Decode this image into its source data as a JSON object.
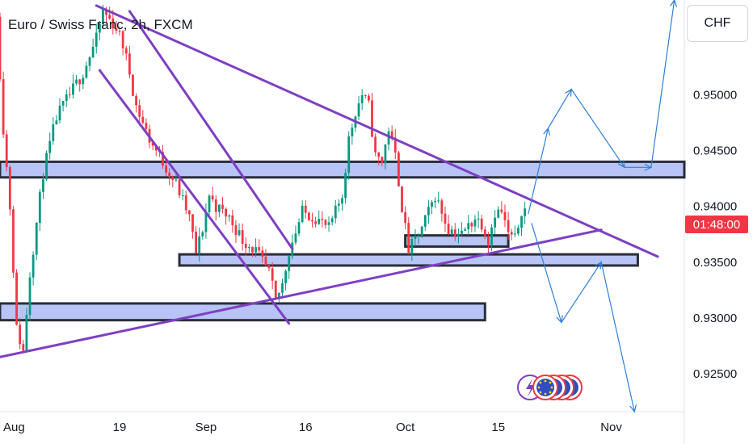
{
  "header": {
    "title": "Euro / Swiss Franc, 2h, FXCM"
  },
  "price_scale": {
    "currency_label": "CHF",
    "countdown": "01:48:00",
    "countdown_color": "#f23645"
  },
  "colors": {
    "up": "#089981",
    "down": "#f23645",
    "trendline": "#7e3fc4",
    "zone_fill": "#b7c4f5",
    "zone_stroke": "#2a2e39",
    "projection": "#2f7fd8"
  },
  "icons": [
    "flash-icon",
    "eur-flag-icon"
  ],
  "chart_data": {
    "type": "candlestick",
    "title": "Euro / Swiss Franc, 2h, FXCM",
    "ylim": [
      0.9216,
      0.9585
    ],
    "y_ticks": [
      "0.92500",
      "0.93000",
      "0.93500",
      "0.94000",
      "0.94500",
      "0.95000"
    ],
    "x_ticks": [
      "Aug",
      "19",
      "Sep",
      "16",
      "Oct",
      "15",
      "Nov"
    ],
    "x_tick_days": [
      0,
      18,
      31,
      46,
      61,
      75,
      92
    ],
    "x_range_days": [
      0,
      103
    ],
    "last_price_day": 79,
    "path": [
      [
        0,
        0.957
      ],
      [
        1,
        0.947
      ],
      [
        2,
        0.94
      ],
      [
        3,
        0.929
      ],
      [
        4,
        0.927
      ],
      [
        5,
        0.934
      ],
      [
        7,
        0.943
      ],
      [
        9,
        0.948
      ],
      [
        11,
        0.95
      ],
      [
        13,
        0.952
      ],
      [
        15,
        0.955
      ],
      [
        16,
        0.9575
      ],
      [
        18,
        0.956
      ],
      [
        19,
        0.9545
      ],
      [
        20,
        0.952
      ],
      [
        21,
        0.949
      ],
      [
        23,
        0.946
      ],
      [
        25,
        0.944
      ],
      [
        27,
        0.942
      ],
      [
        29,
        0.939
      ],
      [
        30,
        0.9358
      ],
      [
        31,
        0.938
      ],
      [
        32,
        0.941
      ],
      [
        33,
        0.94
      ],
      [
        35,
        0.939
      ],
      [
        37,
        0.937
      ],
      [
        39,
        0.936
      ],
      [
        40,
        0.935
      ],
      [
        41,
        0.934
      ],
      [
        42,
        0.9315
      ],
      [
        43,
        0.933
      ],
      [
        44,
        0.936
      ],
      [
        46,
        0.9395
      ],
      [
        48,
        0.939
      ],
      [
        50,
        0.938
      ],
      [
        52,
        0.941
      ],
      [
        53,
        0.946
      ],
      [
        54,
        0.9485
      ],
      [
        55,
        0.95
      ],
      [
        56,
        0.949
      ],
      [
        57,
        0.9445
      ],
      [
        58,
        0.944
      ],
      [
        59,
        0.947
      ],
      [
        60,
        0.9445
      ],
      [
        61,
        0.94
      ],
      [
        62,
        0.936
      ],
      [
        64,
        0.938
      ],
      [
        66,
        0.941
      ],
      [
        68,
        0.938
      ],
      [
        70,
        0.9375
      ],
      [
        72,
        0.939
      ],
      [
        73,
        0.9385
      ],
      [
        74,
        0.937
      ],
      [
        75,
        0.9395
      ],
      [
        76,
        0.9395
      ],
      [
        77,
        0.9375
      ],
      [
        78,
        0.937
      ],
      [
        79,
        0.9397
      ]
    ],
    "zones": [
      {
        "name": "zone-0.9430",
        "x": [
          0,
          103
        ],
        "y": [
          0.9426,
          0.944
        ]
      },
      {
        "name": "zone-0.9370",
        "x": [
          61,
          76.5
        ],
        "y": [
          0.9364,
          0.9374
        ]
      },
      {
        "name": "zone-0.9350",
        "x": [
          27,
          96
        ],
        "y": [
          0.9347,
          0.9357
        ]
      },
      {
        "name": "zone-0.9305",
        "x": [
          0,
          73
        ],
        "y": [
          0.9298,
          0.9313
        ]
      }
    ],
    "trendlines": [
      {
        "name": "descending-resistance",
        "points": [
          [
            14.5,
            0.958
          ],
          [
            99,
            0.9355
          ]
        ]
      },
      {
        "name": "channel-upper",
        "points": [
          [
            19.5,
            0.9575
          ],
          [
            44,
            0.9362
          ]
        ]
      },
      {
        "name": "channel-lower",
        "points": [
          [
            15,
            0.9522
          ],
          [
            43.5,
            0.9295
          ]
        ]
      },
      {
        "name": "ascending-support",
        "points": [
          [
            0,
            0.9265
          ],
          [
            90.5,
            0.9379
          ]
        ]
      }
    ],
    "projections": [
      {
        "name": "bullish-projection",
        "points": [
          [
            79.5,
            0.9393
          ],
          [
            82.5,
            0.947
          ],
          [
            86,
            0.9505
          ],
          [
            94,
            0.9435
          ],
          [
            98,
            0.9435
          ],
          [
            101.5,
            0.9585
          ]
        ]
      },
      {
        "name": "bearish-projection",
        "points": [
          [
            80,
            0.9385
          ],
          [
            84.5,
            0.9296
          ],
          [
            90.5,
            0.935
          ],
          [
            95.5,
            0.9216
          ]
        ]
      }
    ]
  }
}
